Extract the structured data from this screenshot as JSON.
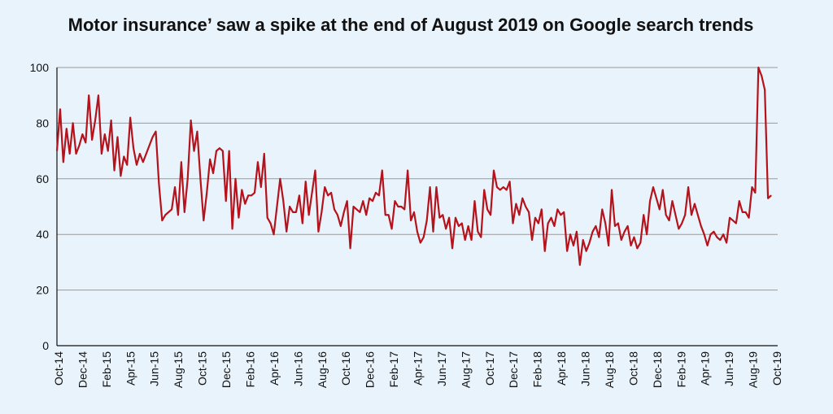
{
  "chart_data": {
    "type": "line",
    "title": "Motor insurance’ saw a spike at the end of August 2019 on Google search trends",
    "xlabel": "",
    "ylabel": "",
    "ylim": [
      0,
      100
    ],
    "yticks": [
      0,
      20,
      40,
      60,
      80,
      100
    ],
    "xticks": [
      "Oct-14",
      "Dec-14",
      "Feb-15",
      "Apr-15",
      "Jun-15",
      "Aug-15",
      "Oct-15",
      "Dec-15",
      "Feb-16",
      "Apr-16",
      "Jun-16",
      "Aug-16",
      "Oct-16",
      "Dec-16",
      "Feb-17",
      "Apr-17",
      "Jun-17",
      "Aug-17",
      "Oct-17",
      "Dec-17",
      "Feb-18",
      "Apr-18",
      "Jun-18",
      "Aug-18",
      "Oct-18",
      "Dec-18",
      "Feb-19",
      "Apr-19",
      "Jun-19",
      "Aug-19",
      "Oct-19"
    ],
    "grid": true,
    "line_color": "#b5121b",
    "series": [
      {
        "values": [
          70,
          85,
          66,
          78,
          69,
          80,
          69,
          72,
          76,
          73,
          90,
          74,
          81,
          90,
          69,
          76,
          70,
          81,
          63,
          75,
          61,
          68,
          65,
          82,
          71,
          65,
          69,
          66,
          69,
          72,
          75,
          77,
          58,
          45,
          47,
          48,
          49,
          57,
          47,
          66,
          48,
          60,
          81,
          70,
          77,
          60,
          45,
          55,
          67,
          62,
          70,
          71,
          70,
          52,
          70,
          42,
          60,
          46,
          56,
          51,
          54,
          54,
          55,
          66,
          57,
          69,
          46,
          44,
          40,
          50,
          60,
          52,
          41,
          50,
          48,
          48,
          54,
          44,
          59,
          47,
          55,
          63,
          41,
          48,
          57,
          54,
          55,
          49,
          47,
          43,
          48,
          52,
          35,
          50,
          49,
          48,
          52,
          47,
          53,
          52,
          55,
          54,
          63,
          47,
          47,
          42,
          52,
          50,
          50,
          49,
          63,
          45,
          48,
          41,
          37,
          39,
          45,
          57,
          41,
          57,
          46,
          47,
          42,
          46,
          35,
          46,
          43,
          44,
          38,
          43,
          38,
          52,
          41,
          39,
          56,
          49,
          47,
          63,
          57,
          56,
          57,
          56,
          59,
          44,
          51,
          47,
          53,
          50,
          48,
          38,
          46,
          44,
          49,
          34,
          44,
          46,
          43,
          49,
          47,
          48,
          34,
          40,
          36,
          41,
          29,
          38,
          34,
          37,
          41,
          43,
          39,
          49,
          44,
          36,
          56,
          43,
          44,
          38,
          41,
          43,
          36,
          39,
          35,
          37,
          47,
          40,
          52,
          57,
          53,
          49,
          56,
          47,
          45,
          52,
          47,
          42,
          44,
          47,
          57,
          47,
          51,
          47,
          43,
          40,
          36,
          40,
          41,
          39,
          38,
          40,
          37,
          46,
          45,
          44,
          52,
          48,
          48,
          46,
          57,
          55,
          100,
          97,
          92,
          53,
          54
        ]
      }
    ]
  }
}
